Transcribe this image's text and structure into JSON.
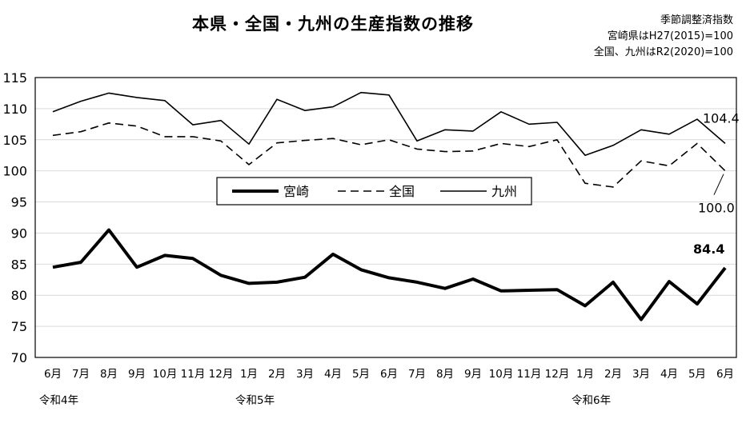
{
  "title": "本県・全国・九州の生産指数の推移",
  "notes": [
    "季節調整済指数",
    "宮崎県はH27(2015)=100",
    "全国、九州はR2(2020)=100"
  ],
  "chart_data": {
    "type": "line",
    "categories": [
      "6月",
      "7月",
      "8月",
      "9月",
      "10月",
      "11月",
      "12月",
      "1月",
      "2月",
      "3月",
      "4月",
      "5月",
      "6月",
      "7月",
      "8月",
      "9月",
      "10月",
      "11月",
      "12月",
      "1月",
      "2月",
      "3月",
      "4月",
      "5月",
      "6月"
    ],
    "year_labels": [
      {
        "index": 0,
        "label": "令和4年"
      },
      {
        "index": 7,
        "label": "令和5年"
      },
      {
        "index": 19,
        "label": "令和6年"
      }
    ],
    "ylim": [
      70,
      115
    ],
    "yticks": [
      70,
      75,
      80,
      85,
      90,
      95,
      100,
      105,
      110,
      115
    ],
    "grid": true,
    "legend_position": "center",
    "series": [
      {
        "name": "宮崎",
        "style": "thick-solid",
        "values": [
          84.5,
          85.3,
          90.5,
          84.5,
          86.4,
          85.9,
          83.2,
          81.9,
          82.1,
          82.9,
          86.6,
          84.1,
          82.8,
          82.1,
          81.1,
          82.6,
          80.7,
          80.8,
          80.9,
          78.3,
          82.1,
          76.1,
          82.2,
          78.6,
          84.4
        ]
      },
      {
        "name": "全国",
        "style": "dashed",
        "values": [
          105.7,
          106.3,
          107.7,
          107.2,
          105.5,
          105.5,
          104.8,
          101.0,
          104.5,
          104.9,
          105.2,
          104.2,
          105.0,
          103.5,
          103.1,
          103.2,
          104.4,
          103.9,
          105.0,
          98.0,
          97.4,
          101.6,
          100.8,
          104.4,
          100.0
        ]
      },
      {
        "name": "九州",
        "style": "thin-solid",
        "values": [
          109.5,
          111.2,
          112.5,
          111.8,
          111.3,
          107.4,
          108.1,
          104.3,
          111.5,
          109.7,
          110.3,
          112.6,
          112.2,
          104.8,
          106.6,
          106.4,
          109.5,
          107.5,
          107.8,
          102.5,
          104.1,
          106.6,
          105.9,
          108.3,
          104.4
        ]
      }
    ],
    "annotations": [
      {
        "series": "九州",
        "index": 24,
        "text": "104.4"
      },
      {
        "series": "全国",
        "index": 24,
        "text": "100.0"
      },
      {
        "series": "宮崎",
        "index": 24,
        "text": "84.4"
      }
    ]
  }
}
